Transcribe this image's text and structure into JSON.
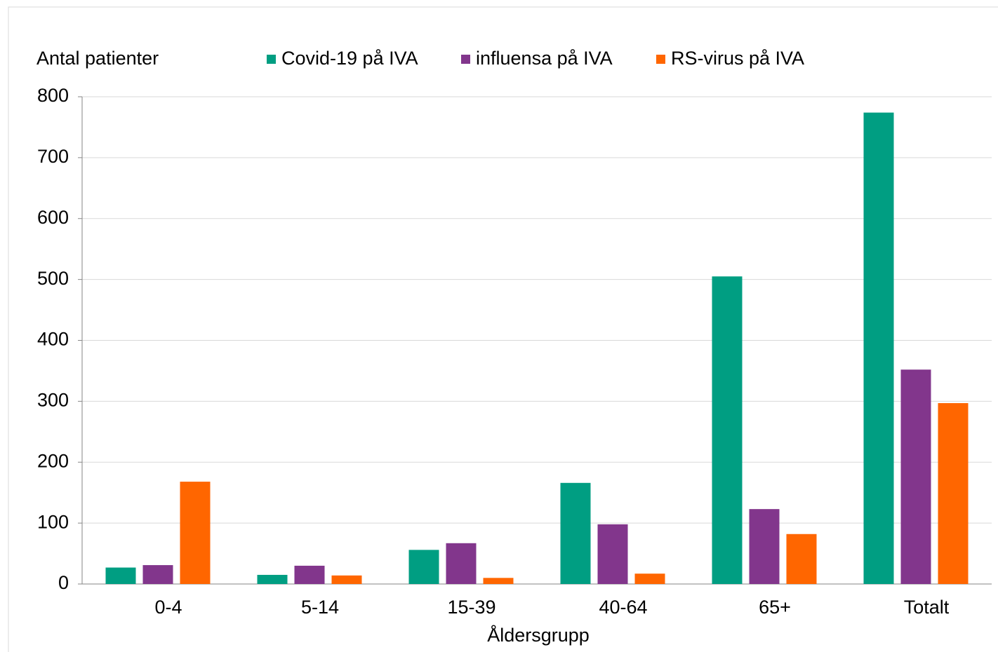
{
  "chart_data": {
    "type": "bar",
    "y_label": "Antal patienter",
    "x_label": "Åldersgrupp",
    "categories": [
      "0-4",
      "5-14",
      "15-39",
      "40-64",
      "65+",
      "Totalt"
    ],
    "series": [
      {
        "name": "Covid-19 på IVA",
        "color": "#009e82",
        "values": [
          27,
          15,
          56,
          166,
          505,
          774
        ]
      },
      {
        "name": "influensa på IVA",
        "color": "#82368c",
        "values": [
          31,
          30,
          67,
          98,
          123,
          352
        ]
      },
      {
        "name": "RS-virus på IVA",
        "color": "#ff6600",
        "values": [
          168,
          14,
          10,
          17,
          82,
          297
        ]
      }
    ],
    "ylim": [
      0,
      800
    ],
    "yticks": [
      0,
      100,
      200,
      300,
      400,
      500,
      600,
      700,
      800
    ],
    "grid": true
  }
}
